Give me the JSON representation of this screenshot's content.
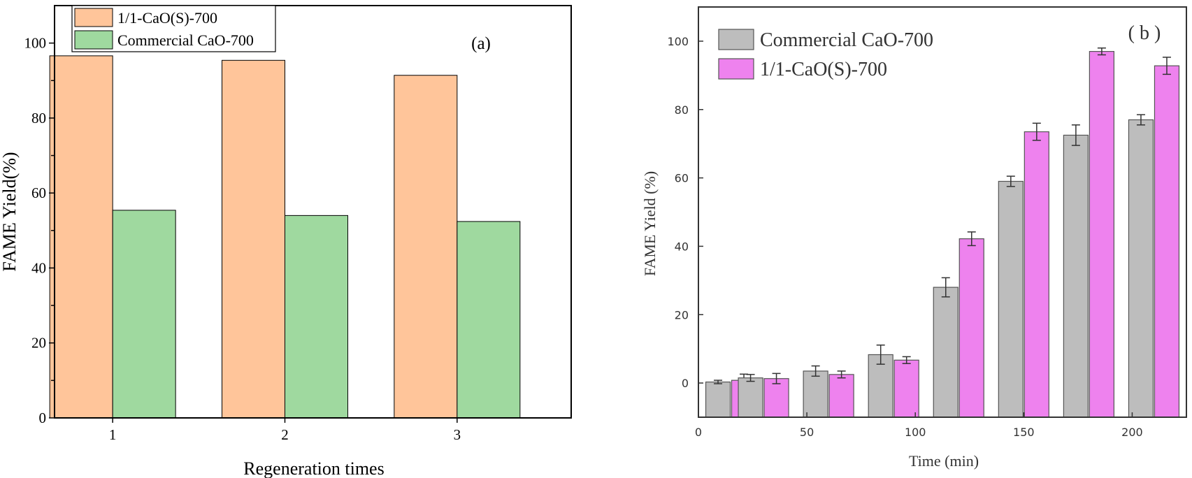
{
  "chart_data": [
    {
      "type": "bar",
      "panel_label": "(a)",
      "title": "",
      "xlabel": "Regeneration times",
      "ylabel": "FAME Yield(%)",
      "categories": [
        "1",
        "2",
        "3"
      ],
      "ylim": [
        0,
        110
      ],
      "yticks": [
        0,
        20,
        40,
        60,
        80,
        100
      ],
      "legend_position": "top-left",
      "grid": false,
      "series": [
        {
          "name": "1/1-CaO(S)-700",
          "values": [
            96.6,
            95.4,
            91.4
          ],
          "color": "#ffc59a"
        },
        {
          "name": "Commercial CaO-700",
          "values": [
            55.4,
            54.0,
            52.4
          ],
          "color": "#9fd99f"
        }
      ]
    },
    {
      "type": "bar",
      "panel_label": "( b )",
      "title": "",
      "xlabel": "Time (min)",
      "ylabel": "FAME Yield (%)",
      "x": [
        15,
        30,
        60,
        90,
        120,
        150,
        180,
        210
      ],
      "xlim": [
        0,
        225
      ],
      "ylim": [
        -10,
        110
      ],
      "xticks": [
        0,
        50,
        100,
        150,
        200
      ],
      "yticks": [
        0,
        20,
        40,
        60,
        80,
        100
      ],
      "legend_position": "top-left",
      "grid": false,
      "series": [
        {
          "name": "Commercial CaO-700",
          "values": [
            0.3,
            1.5,
            3.5,
            8.3,
            28.0,
            59.0,
            72.5,
            77.0
          ],
          "errors": [
            0.5,
            1.0,
            1.5,
            2.8,
            2.8,
            1.5,
            3.0,
            1.5
          ],
          "color": "#bdbdbd"
        },
        {
          "name": "1/1-CaO(S)-700",
          "values": [
            0.8,
            1.3,
            2.5,
            6.7,
            42.2,
            73.5,
            97.0,
            92.8
          ],
          "errors": [
            1.8,
            1.5,
            1.0,
            1.0,
            2.0,
            2.5,
            1.0,
            2.5
          ],
          "color": "#ee82ee"
        }
      ]
    }
  ]
}
